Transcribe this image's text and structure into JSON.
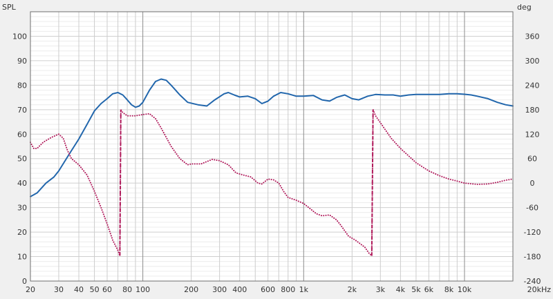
{
  "chart_data": {
    "type": "line",
    "title": "",
    "xscale": "log",
    "grid": true,
    "legend": "none",
    "xlim": [
      20,
      20000
    ],
    "ylim_left": [
      0,
      110
    ],
    "ylim_right": [
      -240,
      420
    ],
    "ylabel_left": "SPL",
    "ylabel_right": "deg",
    "x_ticks": [
      20,
      30,
      40,
      50,
      60,
      80,
      100,
      200,
      300,
      400,
      600,
      800,
      1000,
      2000,
      3000,
      4000,
      5000,
      6000,
      8000,
      10000,
      20000
    ],
    "x_tick_labels": [
      "20",
      "30",
      "40",
      "50",
      "60",
      "80",
      "100",
      "200",
      "300",
      "400",
      "600",
      "800",
      "1k",
      "2k",
      "3k",
      "4k",
      "5k",
      "6k",
      "8k",
      "10k",
      "20kHz"
    ],
    "left_ticks": [
      0,
      10,
      20,
      30,
      40,
      50,
      60,
      70,
      80,
      90,
      100
    ],
    "left_tick_labels": [
      "0",
      "10",
      "20",
      "30",
      "40",
      "50",
      "60",
      "70",
      "80",
      "90",
      "100"
    ],
    "right_ticks": [
      -240,
      -180,
      -120,
      -60,
      0,
      60,
      120,
      180,
      240,
      300,
      360
    ],
    "right_tick_labels": [
      "-240",
      "-180",
      "-120",
      "-60",
      "0",
      "60",
      "120",
      "180",
      "240",
      "300",
      "360"
    ],
    "series": [
      {
        "axis": "left",
        "style": "solid",
        "color": "#2166ac",
        "points": [
          [
            20,
            34.5
          ],
          [
            22,
            36
          ],
          [
            25,
            40
          ],
          [
            28,
            42.5
          ],
          [
            30,
            45
          ],
          [
            35,
            52
          ],
          [
            40,
            58
          ],
          [
            45,
            64
          ],
          [
            50,
            69.5
          ],
          [
            55,
            72.5
          ],
          [
            60,
            74.5
          ],
          [
            65,
            76.5
          ],
          [
            70,
            77
          ],
          [
            75,
            76
          ],
          [
            80,
            74
          ],
          [
            85,
            72
          ],
          [
            90,
            71
          ],
          [
            95,
            71.5
          ],
          [
            100,
            73
          ],
          [
            110,
            78
          ],
          [
            120,
            81.5
          ],
          [
            130,
            82.5
          ],
          [
            140,
            82
          ],
          [
            150,
            80
          ],
          [
            170,
            76
          ],
          [
            190,
            73
          ],
          [
            220,
            72
          ],
          [
            250,
            71.5
          ],
          [
            280,
            74
          ],
          [
            320,
            76.5
          ],
          [
            340,
            77
          ],
          [
            370,
            76
          ],
          [
            400,
            75.2
          ],
          [
            450,
            75.5
          ],
          [
            500,
            74.5
          ],
          [
            550,
            72.5
          ],
          [
            600,
            73.5
          ],
          [
            650,
            75.5
          ],
          [
            720,
            77
          ],
          [
            800,
            76.5
          ],
          [
            900,
            75.5
          ],
          [
            1000,
            75.5
          ],
          [
            1150,
            75.8
          ],
          [
            1300,
            74
          ],
          [
            1450,
            73.5
          ],
          [
            1600,
            75
          ],
          [
            1800,
            76
          ],
          [
            2000,
            74.5
          ],
          [
            2200,
            74
          ],
          [
            2500,
            75.5
          ],
          [
            2800,
            76.2
          ],
          [
            3200,
            76
          ],
          [
            3600,
            76
          ],
          [
            4000,
            75.5
          ],
          [
            4500,
            76
          ],
          [
            5000,
            76.2
          ],
          [
            6000,
            76.2
          ],
          [
            7000,
            76.2
          ],
          [
            8000,
            76.5
          ],
          [
            9000,
            76.5
          ],
          [
            10000,
            76.3
          ],
          [
            11000,
            76
          ],
          [
            12000,
            75.5
          ],
          [
            14000,
            74.5
          ],
          [
            16000,
            73
          ],
          [
            18000,
            72
          ],
          [
            20000,
            71.5
          ]
        ]
      },
      {
        "axis": "right",
        "style": "dotted",
        "color": "#b0195a",
        "points": [
          [
            20,
            100
          ],
          [
            21,
            85
          ],
          [
            22,
            85
          ],
          [
            24,
            100
          ],
          [
            27,
            112
          ],
          [
            30,
            120
          ],
          [
            32,
            110
          ],
          [
            34,
            80
          ],
          [
            36,
            60
          ],
          [
            40,
            45
          ],
          [
            45,
            20
          ],
          [
            50,
            -20
          ],
          [
            55,
            -60
          ],
          [
            60,
            -100
          ],
          [
            65,
            -140
          ],
          [
            70,
            -165
          ],
          [
            72,
            -178
          ],
          [
            73,
            180
          ],
          [
            75,
            173
          ],
          [
            80,
            165
          ],
          [
            90,
            165
          ],
          [
            100,
            168
          ],
          [
            110,
            170
          ],
          [
            120,
            158
          ],
          [
            130,
            135
          ],
          [
            150,
            90
          ],
          [
            170,
            60
          ],
          [
            190,
            45
          ],
          [
            200,
            47
          ],
          [
            230,
            47
          ],
          [
            270,
            58
          ],
          [
            300,
            55
          ],
          [
            340,
            45
          ],
          [
            380,
            25
          ],
          [
            420,
            20
          ],
          [
            470,
            15
          ],
          [
            520,
            0
          ],
          [
            550,
            -2
          ],
          [
            600,
            10
          ],
          [
            650,
            8
          ],
          [
            700,
            0
          ],
          [
            750,
            -20
          ],
          [
            800,
            -35
          ],
          [
            900,
            -42
          ],
          [
            1000,
            -50
          ],
          [
            1100,
            -63
          ],
          [
            1200,
            -75
          ],
          [
            1300,
            -80
          ],
          [
            1450,
            -78
          ],
          [
            1600,
            -90
          ],
          [
            1700,
            -103
          ],
          [
            1900,
            -130
          ],
          [
            2100,
            -140
          ],
          [
            2400,
            -157
          ],
          [
            2550,
            -172
          ],
          [
            2650,
            -178
          ],
          [
            2700,
            180
          ],
          [
            2800,
            165
          ],
          [
            3000,
            148
          ],
          [
            3500,
            110
          ],
          [
            4000,
            85
          ],
          [
            5000,
            50
          ],
          [
            6000,
            30
          ],
          [
            7000,
            18
          ],
          [
            8000,
            10
          ],
          [
            9000,
            5
          ],
          [
            10000,
            0
          ],
          [
            12000,
            -3
          ],
          [
            14000,
            -2
          ],
          [
            16000,
            2
          ],
          [
            18000,
            7
          ],
          [
            20000,
            10
          ]
        ]
      },
      {
        "axis": "right",
        "style": "dashed",
        "color": "#b0195a",
        "points": [
          [
            72,
            -178
          ],
          [
            73,
            180
          ]
        ]
      },
      {
        "axis": "right",
        "style": "dashed",
        "color": "#b0195a",
        "points": [
          [
            2650,
            -178
          ],
          [
            2700,
            180
          ]
        ]
      }
    ]
  }
}
